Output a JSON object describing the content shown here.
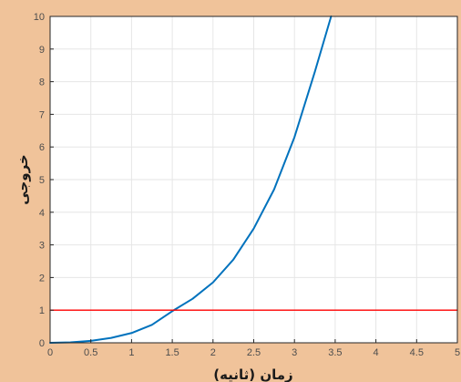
{
  "chart_data": {
    "type": "line",
    "title": "",
    "xlabel": "زمان (ثانیه)",
    "ylabel": "خروجی",
    "xlim": [
      0,
      5
    ],
    "ylim": [
      0,
      10
    ],
    "xticks": [
      "0",
      "0.5",
      "1",
      "1.5",
      "2",
      "2.5",
      "3",
      "3.5",
      "4",
      "4.5",
      "5"
    ],
    "yticks": [
      "0",
      "1",
      "2",
      "3",
      "4",
      "5",
      "6",
      "7",
      "8",
      "9",
      "10"
    ],
    "grid": true,
    "series": [
      {
        "color": "#0072bd",
        "x": [
          0,
          0.25,
          0.5,
          0.75,
          1.0,
          1.25,
          1.5,
          1.75,
          2.0,
          2.25,
          2.5,
          2.75,
          3.0,
          3.25,
          3.45
        ],
        "y": [
          0,
          0.015,
          0.06,
          0.15,
          0.3,
          0.55,
          0.97,
          1.35,
          1.85,
          2.55,
          3.5,
          4.7,
          6.3,
          8.3,
          10
        ]
      },
      {
        "color": "#ff0000",
        "x": [
          0,
          5
        ],
        "y": [
          1,
          1
        ]
      }
    ]
  }
}
